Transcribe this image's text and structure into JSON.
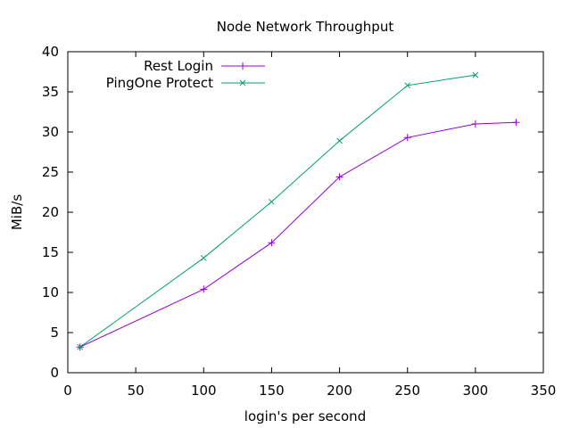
{
  "chart_data": {
    "type": "line",
    "title": "Node Network Throughput",
    "xlabel": "login's per second",
    "ylabel": "MiB/s",
    "xlim": [
      0,
      350
    ],
    "ylim": [
      0,
      40
    ],
    "xticks": [
      0,
      50,
      100,
      150,
      200,
      250,
      300,
      350
    ],
    "yticks": [
      0,
      5,
      10,
      15,
      20,
      25,
      30,
      35,
      40
    ],
    "grid": false,
    "legend_position": "top-left",
    "series": [
      {
        "name": "Rest Login",
        "color": "#9400d3",
        "marker": "plus",
        "x": [
          9,
          100,
          150,
          200,
          250,
          300,
          330
        ],
        "y": [
          3.2,
          10.4,
          16.2,
          24.4,
          29.3,
          31.0,
          31.2
        ]
      },
      {
        "name": "PingOne Protect",
        "color": "#009e73",
        "marker": "cross",
        "x": [
          9,
          100,
          150,
          200,
          250,
          300
        ],
        "y": [
          3.2,
          14.3,
          21.3,
          28.9,
          35.8,
          37.1
        ]
      }
    ]
  }
}
